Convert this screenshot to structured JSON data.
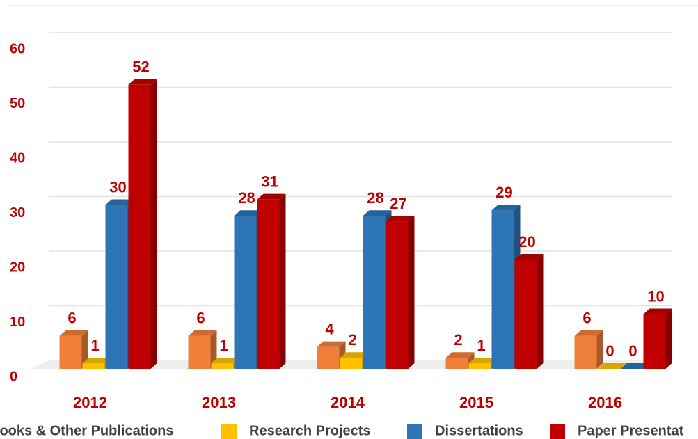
{
  "chart_data": {
    "type": "bar",
    "categories": [
      "2012",
      "2013",
      "2014",
      "2015",
      "2016"
    ],
    "series": [
      {
        "name": "Books & Other Publications",
        "color": "#f07f3a",
        "values": [
          6,
          6,
          4,
          2,
          6
        ]
      },
      {
        "name": "Research Projects",
        "color": "#ffc000",
        "values": [
          1,
          1,
          2,
          1,
          0
        ]
      },
      {
        "name": "Dissertations",
        "color": "#2e75b6",
        "values": [
          30,
          28,
          28,
          29,
          0
        ]
      },
      {
        "name": "Paper Presentat",
        "color": "#c00000",
        "values": [
          52,
          31,
          27,
          20,
          10
        ]
      }
    ],
    "ylim": [
      0,
      60
    ],
    "yticks": [
      0,
      10,
      20,
      30,
      40,
      50,
      60
    ],
    "grid": true,
    "legend": "bottom"
  }
}
